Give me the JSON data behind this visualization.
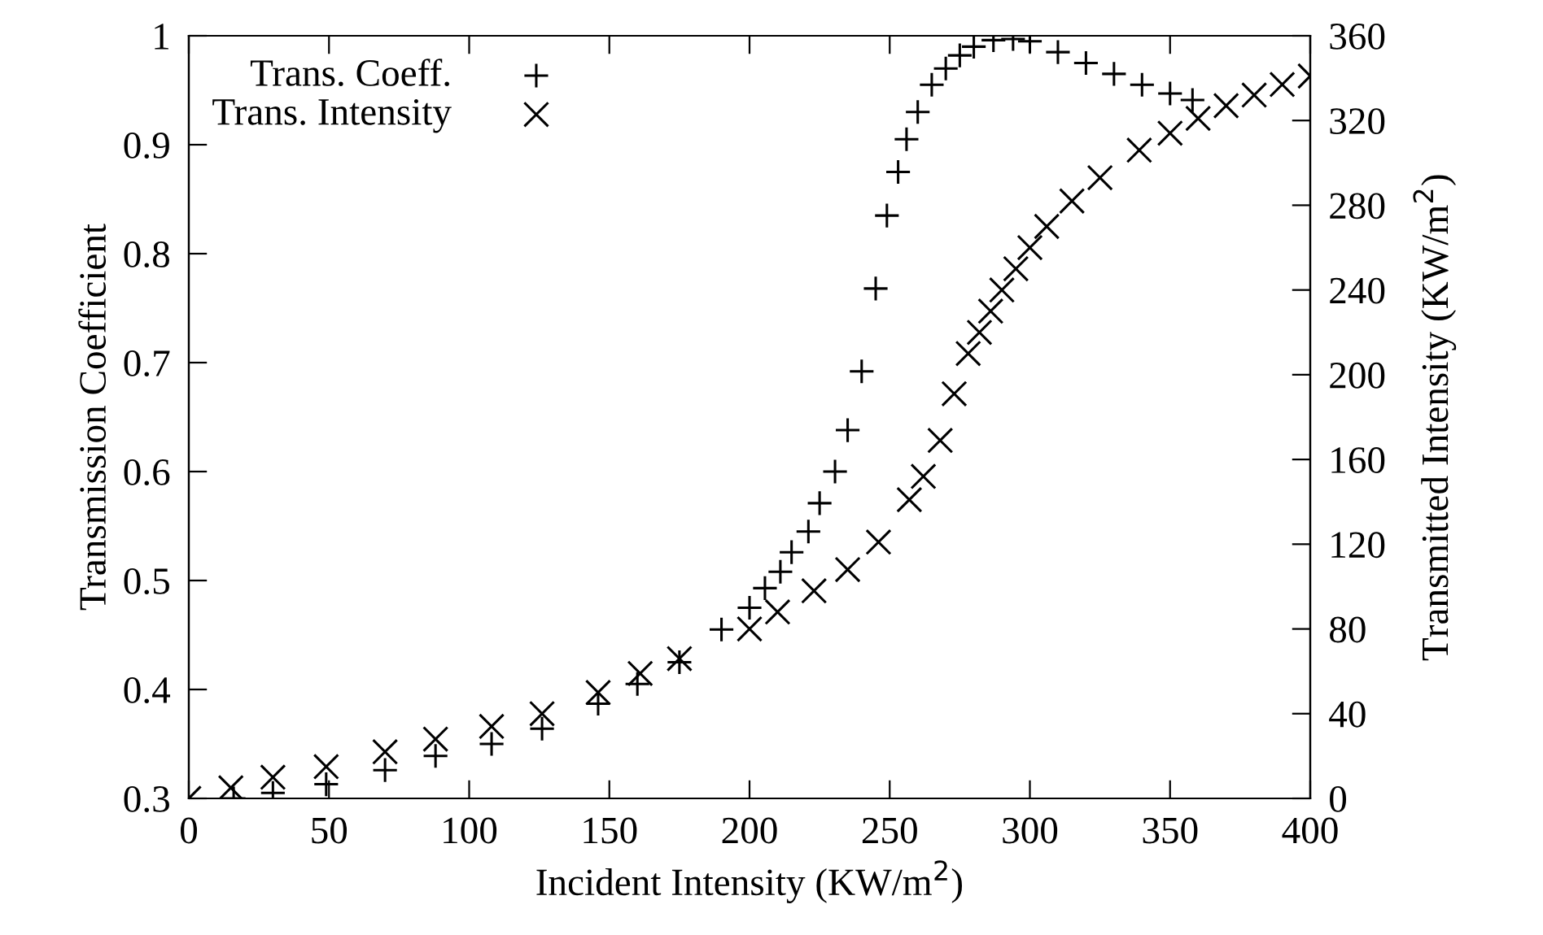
{
  "chart_data": {
    "type": "scatter",
    "xlabel": "Incident Intensity (KW/m$^{2}$)",
    "ylabel": "Transmission Coefficient",
    "y2label": "Transmitted Intensity (KW/m$^{2}$)",
    "xlim": [
      0,
      400
    ],
    "xticks": [
      0,
      50,
      100,
      150,
      200,
      250,
      300,
      350,
      400
    ],
    "ylim": [
      0.3,
      1
    ],
    "yticks": [
      0.3,
      0.4,
      0.5,
      0.6,
      0.7,
      0.8,
      0.9,
      1
    ],
    "y2lim": [
      0,
      360
    ],
    "y2ticks": [
      0,
      40,
      80,
      120,
      160,
      200,
      240,
      280,
      320,
      360
    ],
    "legend": "top left",
    "grid": false,
    "series": [
      {
        "name": "Trans. Coeff.",
        "color": "#000000",
        "marker": "plus",
        "x": [
          16,
          30,
          49,
          70,
          88,
          108,
          126,
          146,
          160,
          175,
          190,
          200,
          205.5,
          211,
          215,
          221,
          225,
          230.5,
          235,
          240,
          245,
          249,
          253,
          256,
          260,
          265,
          270,
          275,
          280,
          287,
          294,
          300,
          310,
          320,
          330,
          340,
          350,
          358
        ],
        "values": [
          0.3,
          0.305,
          0.313,
          0.326,
          0.339,
          0.35,
          0.364,
          0.387,
          0.405,
          0.425,
          0.455,
          0.475,
          0.493,
          0.508,
          0.526,
          0.545,
          0.571,
          0.6,
          0.638,
          0.692,
          0.768,
          0.835,
          0.875,
          0.905,
          0.93,
          0.955,
          0.97,
          0.982,
          0.99,
          0.996,
          0.997,
          0.995,
          0.985,
          0.975,
          0.965,
          0.955,
          0.947,
          0.941
        ]
      },
      {
        "name": "Trans. Intensity",
        "color": "#000000",
        "marker": "cross",
        "axis": "y2",
        "x": [
          0,
          15,
          30,
          49,
          70,
          88,
          108,
          126,
          146,
          161,
          175,
          200,
          210,
          223,
          235,
          246,
          257,
          262,
          268,
          273,
          278,
          282,
          286,
          290,
          295,
          300,
          306,
          315,
          325,
          339,
          350,
          360,
          370,
          380,
          390,
          400
        ],
        "values": [
          0,
          5,
          10,
          15,
          22,
          28,
          34,
          40,
          50,
          59,
          66,
          80,
          88,
          98,
          108,
          121,
          141,
          152,
          169,
          191,
          210,
          220,
          230,
          240,
          250,
          260,
          270,
          282,
          293,
          306,
          314,
          321,
          327,
          332,
          337,
          341
        ]
      }
    ]
  }
}
